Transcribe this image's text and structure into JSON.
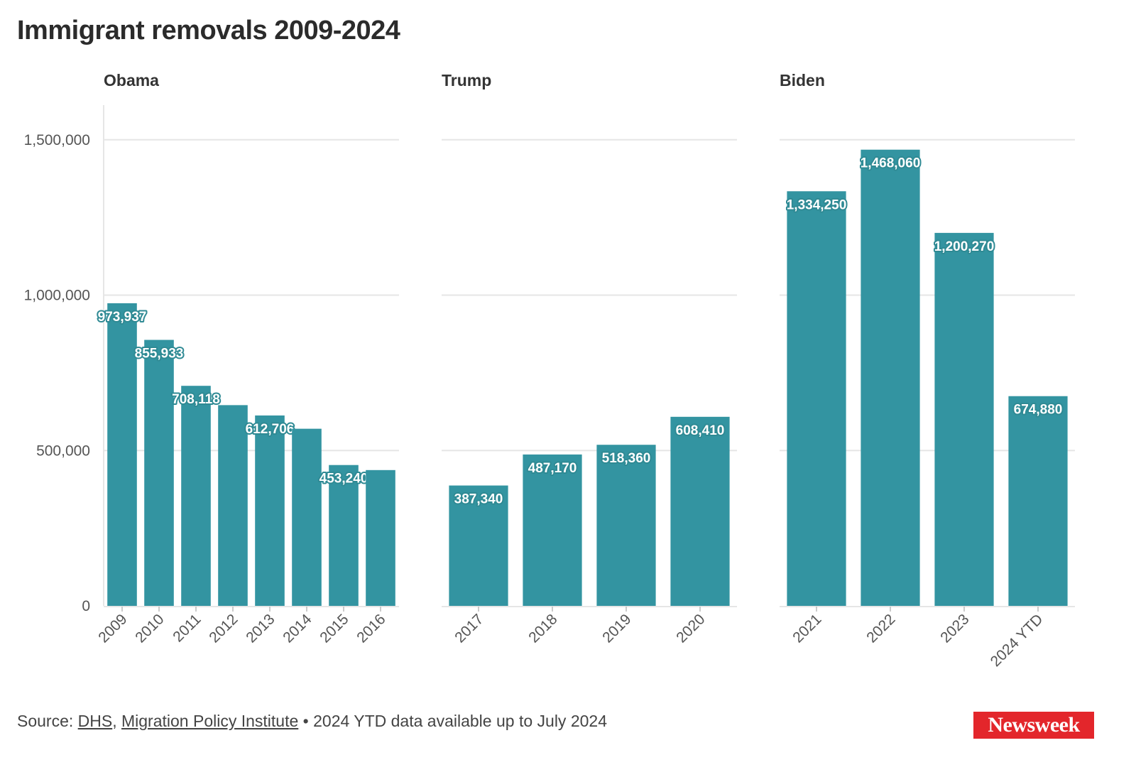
{
  "colors": {
    "bar": "#3394a1",
    "grid": "#e6e6e6",
    "label_outline": "#2f8a94",
    "logo_bg": "#e3262b"
  },
  "chart_data": {
    "type": "bar",
    "title": "Immigrant removals 2009-2024",
    "ylabel": "",
    "ylim": [
      0,
      1600000
    ],
    "yticks": [
      0,
      500000,
      1000000,
      1500000
    ],
    "ytick_labels": [
      "0",
      "500,000",
      "1,000,000",
      "1,500,000"
    ],
    "panels": [
      {
        "name": "Obama",
        "categories": [
          "2009",
          "2010",
          "2011",
          "2012",
          "2013",
          "2014",
          "2015",
          "2016"
        ],
        "values": [
          973937,
          855933,
          708118,
          646000,
          612706,
          570000,
          453240,
          437000
        ],
        "labels": [
          "973,937",
          "855,933",
          "708,118",
          null,
          "612,706",
          null,
          "453,240",
          null
        ]
      },
      {
        "name": "Trump",
        "categories": [
          "2017",
          "2018",
          "2019",
          "2020"
        ],
        "values": [
          387340,
          487170,
          518360,
          608410
        ],
        "labels": [
          "387,340",
          "487,170",
          "518,360",
          "608,410"
        ]
      },
      {
        "name": "Biden",
        "categories": [
          "2021",
          "2022",
          "2023",
          "2024 YTD"
        ],
        "values": [
          1334250,
          1468060,
          1200270,
          674880
        ],
        "labels": [
          "1,334,250",
          "1,468,060",
          "1,200,270",
          "674,880"
        ]
      }
    ]
  },
  "footer": {
    "source_prefix": "Source:",
    "link1": "DHS",
    "separator": ",",
    "link2": "Migration Policy Institute",
    "note": "• 2024 YTD data available up to July 2024"
  },
  "logo": {
    "text": "Newsweek"
  }
}
